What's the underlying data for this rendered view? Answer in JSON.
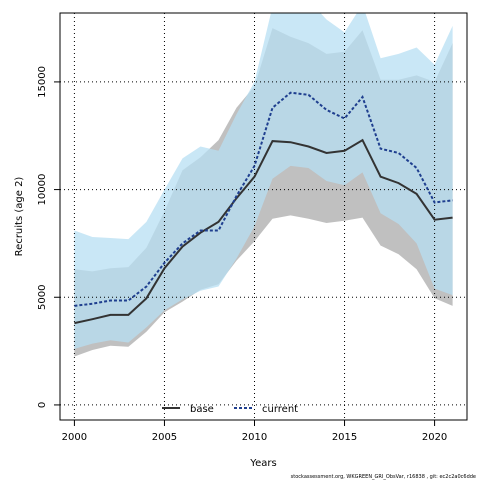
{
  "chart_data": {
    "type": "line",
    "title": "",
    "xlabel": "Years",
    "ylabel": "Recruits (age 2)",
    "xlim": [
      1999.2,
      2021.8
    ],
    "ylim": [
      -700,
      18200
    ],
    "xticks": [
      2000,
      2005,
      2010,
      2015,
      2020
    ],
    "yticks": [
      0,
      5000,
      10000,
      15000
    ],
    "grid": "dotted",
    "legend_position": "bottom-center",
    "x": [
      2000,
      2001,
      2002,
      2003,
      2004,
      2005,
      2006,
      2007,
      2008,
      2009,
      2010,
      2011,
      2012,
      2013,
      2014,
      2015,
      2016,
      2017,
      2018,
      2019,
      2020,
      2021
    ],
    "series": [
      {
        "name": "base",
        "color": "#333333",
        "band_color": "#bdbdbd",
        "dash": "solid",
        "values": [
          3800,
          3980,
          4180,
          4180,
          4950,
          6350,
          7350,
          8000,
          8500,
          9600,
          10600,
          12250,
          12200,
          12000,
          11700,
          11800,
          12300,
          10600,
          10300,
          9800,
          8600,
          8700
        ],
        "lower": [
          2250,
          2550,
          2750,
          2700,
          3400,
          4300,
          4800,
          5350,
          5600,
          6700,
          7600,
          8650,
          8800,
          8650,
          8450,
          8550,
          8700,
          7400,
          7000,
          6300,
          4950,
          4600
        ],
        "upper": [
          6300,
          6200,
          6350,
          6400,
          7300,
          9000,
          10900,
          11500,
          12300,
          13800,
          14800,
          17500,
          17100,
          16800,
          16300,
          16400,
          17400,
          15100,
          15100,
          15300,
          15000,
          16800
        ]
      },
      {
        "name": "current",
        "color": "#1f3f8f",
        "band_color": "#b7dff3",
        "dash": "dotted",
        "values": [
          4600,
          4700,
          4850,
          4850,
          5500,
          6600,
          7500,
          8100,
          8100,
          9700,
          11100,
          13800,
          14500,
          14400,
          13700,
          13300,
          14300,
          11900,
          11700,
          11000,
          9400,
          9500
        ],
        "lower": [
          2600,
          2850,
          3000,
          2900,
          3600,
          4400,
          4900,
          5300,
          5500,
          6800,
          8300,
          10500,
          11100,
          11000,
          10400,
          10200,
          10800,
          8900,
          8400,
          7500,
          5400,
          5100
        ],
        "upper": [
          8100,
          7800,
          7750,
          7700,
          8500,
          10000,
          11450,
          12000,
          11800,
          13500,
          15000,
          18500,
          18600,
          18800,
          17900,
          17300,
          18600,
          16100,
          16300,
          16600,
          15800,
          17600
        ]
      }
    ]
  },
  "footer": {
    "text": "stockassessment.org, WKGREEN_GRI_ObsVar, r16838 , git: ec2c2a0c6dde"
  }
}
